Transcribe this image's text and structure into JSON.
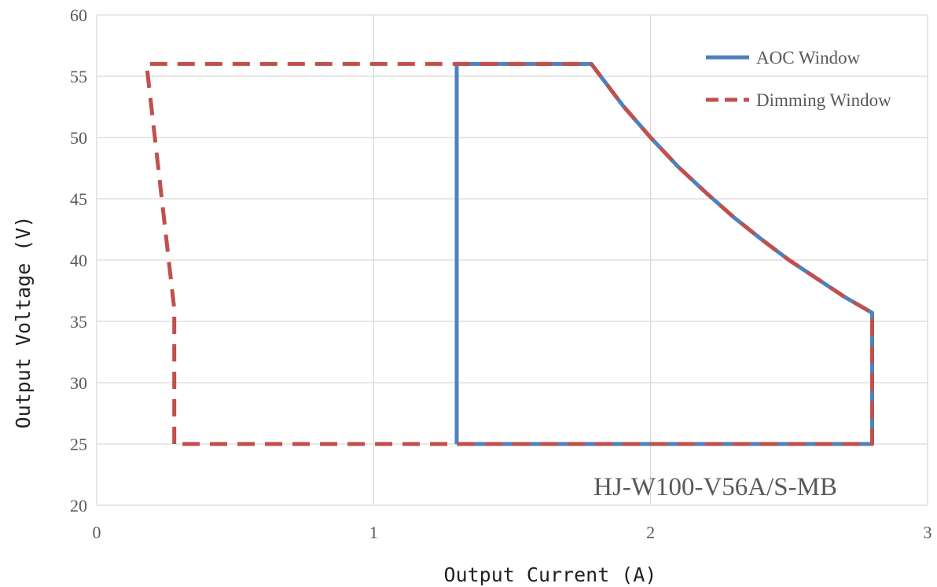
{
  "chart_data": {
    "type": "line",
    "xlabel": "Output Current (A)",
    "ylabel": "Output Voltage (V)",
    "xlim": [
      0,
      3
    ],
    "ylim": [
      20,
      60
    ],
    "xticks": [
      0,
      1,
      2,
      3
    ],
    "yticks": [
      20,
      25,
      30,
      35,
      40,
      45,
      50,
      55,
      60
    ],
    "grid": true,
    "legend_position": "top-right",
    "annotation": "HJ-W100-V56A/S-MB",
    "series": [
      {
        "name": "AOC Window",
        "color": "#4f81bd",
        "style": "solid",
        "points": [
          [
            1.3,
            25
          ],
          [
            1.3,
            56
          ],
          [
            1.786,
            56
          ],
          [
            1.9,
            52.6
          ],
          [
            2.0,
            50.0
          ],
          [
            2.1,
            47.6
          ],
          [
            2.2,
            45.5
          ],
          [
            2.3,
            43.5
          ],
          [
            2.4,
            41.7
          ],
          [
            2.5,
            40.0
          ],
          [
            2.6,
            38.5
          ],
          [
            2.7,
            37.0
          ],
          [
            2.8,
            35.7
          ],
          [
            2.8,
            25
          ],
          [
            1.3,
            25
          ]
        ]
      },
      {
        "name": "Dimming Window",
        "color": "#c0504d",
        "style": "dashed",
        "points": [
          [
            0.28,
            25
          ],
          [
            0.28,
            36
          ],
          [
            0.18,
            56
          ],
          [
            1.786,
            56
          ],
          [
            1.9,
            52.6
          ],
          [
            2.0,
            50.0
          ],
          [
            2.1,
            47.6
          ],
          [
            2.2,
            45.5
          ],
          [
            2.3,
            43.5
          ],
          [
            2.4,
            41.7
          ],
          [
            2.5,
            40.0
          ],
          [
            2.6,
            38.5
          ],
          [
            2.7,
            37.0
          ],
          [
            2.8,
            35.7
          ],
          [
            2.8,
            25
          ],
          [
            0.28,
            25
          ]
        ]
      }
    ]
  }
}
